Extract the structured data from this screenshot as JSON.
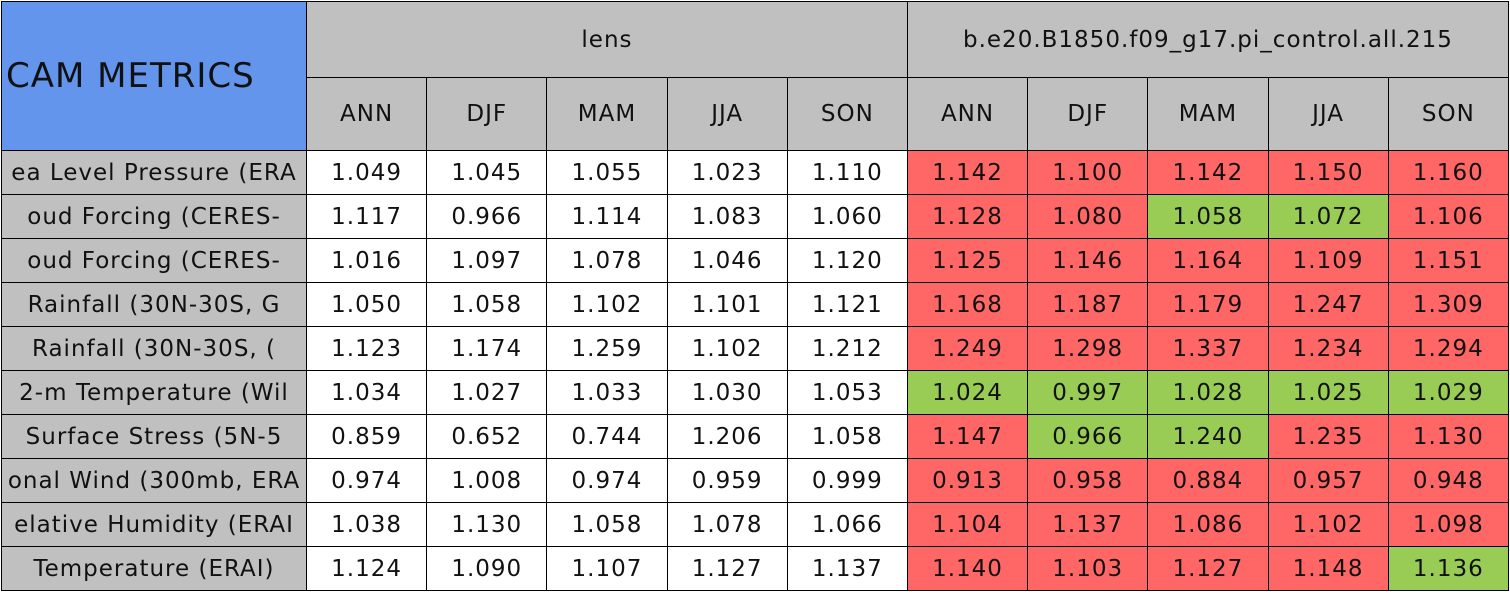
{
  "table": {
    "title": "CAM METRICS",
    "groups": [
      {
        "name": "lens",
        "seasons": [
          "ANN",
          "DJF",
          "MAM",
          "JJA",
          "SON"
        ]
      },
      {
        "name": "b.e20.B1850.f09_g17.pi_control.all.215",
        "seasons": [
          "ANN",
          "DJF",
          "MAM",
          "JJA",
          "SON"
        ]
      }
    ],
    "colors": {
      "red": "#ff6666",
      "green": "#99cc55"
    },
    "rows": [
      {
        "label": "ea Level Pressure (ERA",
        "values": [
          "1.049",
          "1.045",
          "1.055",
          "1.023",
          "1.110",
          "1.142",
          "1.100",
          "1.142",
          "1.150",
          "1.160"
        ],
        "status": [
          null,
          null,
          null,
          null,
          null,
          "red",
          "red",
          "red",
          "red",
          "red"
        ]
      },
      {
        "label": "oud Forcing (CERES-",
        "values": [
          "1.117",
          "0.966",
          "1.114",
          "1.083",
          "1.060",
          "1.128",
          "1.080",
          "1.058",
          "1.072",
          "1.106"
        ],
        "status": [
          null,
          null,
          null,
          null,
          null,
          "red",
          "red",
          "green",
          "green",
          "red"
        ]
      },
      {
        "label": "oud Forcing (CERES-",
        "values": [
          "1.016",
          "1.097",
          "1.078",
          "1.046",
          "1.120",
          "1.125",
          "1.146",
          "1.164",
          "1.109",
          "1.151"
        ],
        "status": [
          null,
          null,
          null,
          null,
          null,
          "red",
          "red",
          "red",
          "red",
          "red"
        ]
      },
      {
        "label": "Rainfall (30N-30S, G",
        "values": [
          "1.050",
          "1.058",
          "1.102",
          "1.101",
          "1.121",
          "1.168",
          "1.187",
          "1.179",
          "1.247",
          "1.309"
        ],
        "status": [
          null,
          null,
          null,
          null,
          null,
          "red",
          "red",
          "red",
          "red",
          "red"
        ]
      },
      {
        "label": "Rainfall (30N-30S, (",
        "values": [
          "1.123",
          "1.174",
          "1.259",
          "1.102",
          "1.212",
          "1.249",
          "1.298",
          "1.337",
          "1.234",
          "1.294"
        ],
        "status": [
          null,
          null,
          null,
          null,
          null,
          "red",
          "red",
          "red",
          "red",
          "red"
        ]
      },
      {
        "label": "2-m Temperature (Wil",
        "values": [
          "1.034",
          "1.027",
          "1.033",
          "1.030",
          "1.053",
          "1.024",
          "0.997",
          "1.028",
          "1.025",
          "1.029"
        ],
        "status": [
          null,
          null,
          null,
          null,
          null,
          "green",
          "green",
          "green",
          "green",
          "green"
        ]
      },
      {
        "label": "Surface Stress (5N-5",
        "values": [
          "0.859",
          "0.652",
          "0.744",
          "1.206",
          "1.058",
          "1.147",
          "0.966",
          "1.240",
          "1.235",
          "1.130"
        ],
        "status": [
          null,
          null,
          null,
          null,
          null,
          "red",
          "green",
          "green",
          "red",
          "red"
        ]
      },
      {
        "label": "onal Wind (300mb, ERA",
        "values": [
          "0.974",
          "1.008",
          "0.974",
          "0.959",
          "0.999",
          "0.913",
          "0.958",
          "0.884",
          "0.957",
          "0.948"
        ],
        "status": [
          null,
          null,
          null,
          null,
          null,
          "red",
          "red",
          "red",
          "red",
          "red"
        ]
      },
      {
        "label": "elative Humidity (ERAI",
        "values": [
          "1.038",
          "1.130",
          "1.058",
          "1.078",
          "1.066",
          "1.104",
          "1.137",
          "1.086",
          "1.102",
          "1.098"
        ],
        "status": [
          null,
          null,
          null,
          null,
          null,
          "red",
          "red",
          "red",
          "red",
          "red"
        ]
      },
      {
        "label": "Temperature (ERAI)",
        "values": [
          "1.124",
          "1.090",
          "1.107",
          "1.127",
          "1.137",
          "1.140",
          "1.103",
          "1.127",
          "1.148",
          "1.136"
        ],
        "status": [
          null,
          null,
          null,
          null,
          null,
          "red",
          "red",
          "red",
          "red",
          "green"
        ]
      }
    ]
  }
}
